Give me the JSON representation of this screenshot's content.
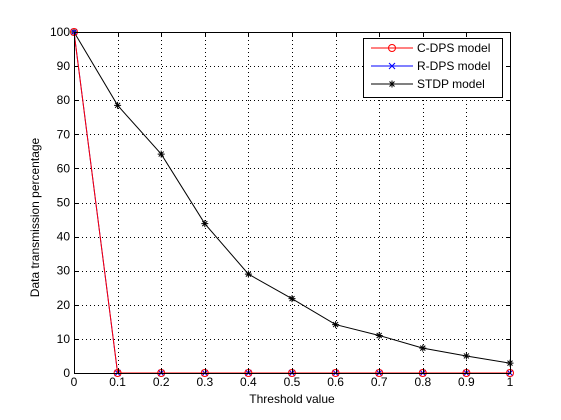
{
  "chart_data": {
    "type": "line",
    "title": "",
    "xlabel": "Threshold value",
    "ylabel": "Data transmission percentage",
    "xlim": [
      0,
      1
    ],
    "ylim": [
      0,
      100
    ],
    "xticks": [
      0,
      0.1,
      0.2,
      0.3,
      0.4,
      0.5,
      0.6,
      0.7,
      0.8,
      0.9,
      1
    ],
    "yticks": [
      0,
      10,
      20,
      30,
      40,
      50,
      60,
      70,
      80,
      90,
      100
    ],
    "xtick_labels": [
      "0",
      "0.1",
      "0.2",
      "0.3",
      "0.4",
      "0.5",
      "0.6",
      "0.7",
      "0.8",
      "0.9",
      "1"
    ],
    "ytick_labels": [
      "0",
      "10",
      "20",
      "30",
      "40",
      "50",
      "60",
      "70",
      "80",
      "90",
      "100"
    ],
    "grid": true,
    "legend_position": "top-right",
    "x": [
      0,
      0.1,
      0.2,
      0.3,
      0.4,
      0.5,
      0.6,
      0.7,
      0.8,
      0.9,
      1
    ],
    "series": [
      {
        "name": "C-DPS model",
        "color": "#ff0000",
        "marker": "circle",
        "values": [
          100,
          0,
          0,
          0,
          0,
          0,
          0,
          0,
          0,
          0,
          0
        ]
      },
      {
        "name": "R-DPS model",
        "color": "#0000ff",
        "marker": "x",
        "values": [
          100,
          0,
          0,
          0,
          0,
          0,
          0,
          0,
          0,
          0,
          0
        ]
      },
      {
        "name": "STDP model",
        "color": "#000000",
        "marker": "star",
        "values": [
          100,
          78.5,
          64.2,
          43.8,
          29,
          21.8,
          14.2,
          11,
          7.3,
          5,
          2.9
        ]
      }
    ]
  }
}
